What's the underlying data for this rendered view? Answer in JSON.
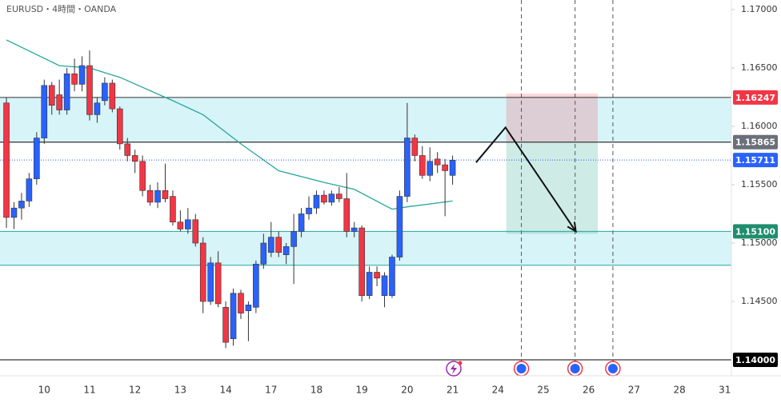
{
  "chart_data": {
    "type": "candlestick",
    "title": "EURUSD・4時間・OANDA",
    "up_color": "#2962ff",
    "down_color": "#f23645",
    "ylim": [
      1.13863,
      1.17082
    ],
    "xlim": [
      -0.85,
      95.87
    ],
    "yticks": [
      {
        "value": 1.17,
        "label": "1.17000"
      },
      {
        "value": 1.165,
        "label": "1.16500"
      },
      {
        "value": 1.16,
        "label": "1.16000"
      },
      {
        "value": 1.155,
        "label": "1.15500"
      },
      {
        "value": 1.15,
        "label": "1.15000"
      },
      {
        "value": 1.145,
        "label": "1.14500"
      }
    ],
    "x_labels": [
      "10",
      "11",
      "12",
      "13",
      "14",
      "17",
      "18",
      "19",
      "20",
      "21",
      "24",
      "25",
      "26",
      "27",
      "28",
      "31"
    ],
    "x_label_index": [
      5,
      11,
      17,
      23,
      29,
      35,
      41,
      47,
      53,
      59,
      65,
      71,
      77,
      83,
      89,
      95
    ],
    "open": [
      1.162,
      1.1522,
      1.153,
      1.1536,
      1.1555,
      1.159,
      1.1635,
      1.1627,
      1.1614,
      1.1645,
      1.1636,
      1.1652,
      1.161,
      1.1622,
      1.1637,
      1.1615,
      1.1585,
      1.1575,
      1.157,
      1.1545,
      1.1535,
      1.1545,
      1.154,
      1.1518,
      1.1512,
      1.152,
      1.15,
      1.145,
      1.1483,
      1.1445,
      1.1418,
      1.1457,
      1.1442,
      1.1445,
      1.1482,
      1.1492,
      1.1505,
      1.149,
      1.1497,
      1.151,
      1.1525,
      1.153,
      1.1541,
      1.1535,
      1.1542,
      1.1538,
      1.151,
      1.1513,
      1.1455,
      1.1475,
      1.1455,
      1.1455,
      1.1488,
      1.154,
      1.159,
      1.1575,
      1.1558,
      1.1572,
      1.1567,
      1.1558
    ],
    "high": [
      1.1625,
      1.1535,
      1.1543,
      1.156,
      1.1595,
      1.164,
      1.1638,
      1.164,
      1.165,
      1.1658,
      1.166,
      1.1665,
      1.1625,
      1.1642,
      1.164,
      1.1617,
      1.159,
      1.158,
      1.1575,
      1.155,
      1.1552,
      1.1568,
      1.1545,
      1.1528,
      1.153,
      1.1525,
      1.1505,
      1.1488,
      1.1493,
      1.145,
      1.1461,
      1.146,
      1.145,
      1.1485,
      1.1508,
      1.1518,
      1.151,
      1.15,
      1.1525,
      1.153,
      1.154,
      1.1545,
      1.1545,
      1.1545,
      1.1548,
      1.156,
      1.1518,
      1.1515,
      1.148,
      1.148,
      1.1475,
      1.149,
      1.1545,
      1.162,
      1.1593,
      1.1583,
      1.1582,
      1.1578,
      1.1572,
      1.1575
    ],
    "low": [
      1.1513,
      1.1512,
      1.152,
      1.1531,
      1.155,
      1.1585,
      1.161,
      1.161,
      1.161,
      1.163,
      1.163,
      1.1605,
      1.1603,
      1.1618,
      1.1612,
      1.158,
      1.157,
      1.156,
      1.154,
      1.1532,
      1.153,
      1.1535,
      1.1515,
      1.151,
      1.1508,
      1.1497,
      1.144,
      1.1447,
      1.1445,
      1.141,
      1.1412,
      1.1435,
      1.1416,
      1.144,
      1.1478,
      1.1488,
      1.1488,
      1.1482,
      1.1465,
      1.1505,
      1.152,
      1.1525,
      1.1533,
      1.1532,
      1.1535,
      1.1505,
      1.1505,
      1.145,
      1.1452,
      1.1463,
      1.1445,
      1.1453,
      1.1485,
      1.1535,
      1.157,
      1.1555,
      1.1553,
      1.156,
      1.1523,
      1.155
    ],
    "close": [
      1.1522,
      1.153,
      1.1536,
      1.1555,
      1.159,
      1.1635,
      1.1618,
      1.1614,
      1.1645,
      1.1636,
      1.1652,
      1.161,
      1.162,
      1.1637,
      1.1615,
      1.1585,
      1.1575,
      1.157,
      1.1545,
      1.1535,
      1.1545,
      1.1538,
      1.1518,
      1.1512,
      1.152,
      1.15,
      1.145,
      1.1483,
      1.1448,
      1.1415,
      1.1457,
      1.144,
      1.1447,
      1.1482,
      1.15,
      1.1505,
      1.1492,
      1.1497,
      1.151,
      1.1525,
      1.153,
      1.1541,
      1.1535,
      1.1542,
      1.1538,
      1.151,
      1.1513,
      1.1455,
      1.1475,
      1.147,
      1.1472,
      1.1488,
      1.154,
      1.159,
      1.1575,
      1.1558,
      1.157,
      1.1567,
      1.1562,
      1.1571
    ],
    "ma_color": "#26a69a",
    "ma_index": [
      0,
      7,
      11,
      15,
      22,
      26,
      31,
      36,
      42,
      46,
      51,
      53,
      59
    ],
    "ma_values": [
      1.1674,
      1.1652,
      1.165,
      1.1642,
      1.1622,
      1.161,
      1.1585,
      1.1562,
      1.1552,
      1.1546,
      1.1529,
      1.1531,
      1.1536
    ],
    "zones": [
      {
        "from": 1.15865,
        "to": 1.16247,
        "color": "#d7f4f8",
        "border": "#333333"
      },
      {
        "from": 1.1481,
        "to": 1.151,
        "color": "#d7f4f8",
        "border": "#26a69a"
      }
    ],
    "price_lines": [
      {
        "value": 1.16247,
        "label": "1.16247",
        "color": "#f23645",
        "style": "solid",
        "line": "#333333"
      },
      {
        "value": 1.15865,
        "label": "1.15865",
        "color": "#6b6f7a",
        "style": "solid",
        "line": "#333333"
      },
      {
        "value": 1.15711,
        "label": "1.15711",
        "color": "#2962ff",
        "style": "dotted",
        "line": "#2962ff"
      },
      {
        "value": 1.151,
        "label": "1.15100",
        "color": "#1e8e6e",
        "style": "solid",
        "line": "#26a69a"
      },
      {
        "value": 1.14,
        "label": "1.14000",
        "color": "#000000",
        "style": "solid",
        "line": "#000000"
      }
    ],
    "position": {
      "entry": 1.15865,
      "stop": 1.1628,
      "target": 1.1508,
      "start": 66.1,
      "end": 78.2
    },
    "arrow": {
      "x": [
        62.1,
        66,
        75.3
      ],
      "y": [
        1.1569,
        1.1599,
        1.151
      ]
    },
    "event_lines": [
      68.1,
      75.2,
      80.2
    ]
  }
}
